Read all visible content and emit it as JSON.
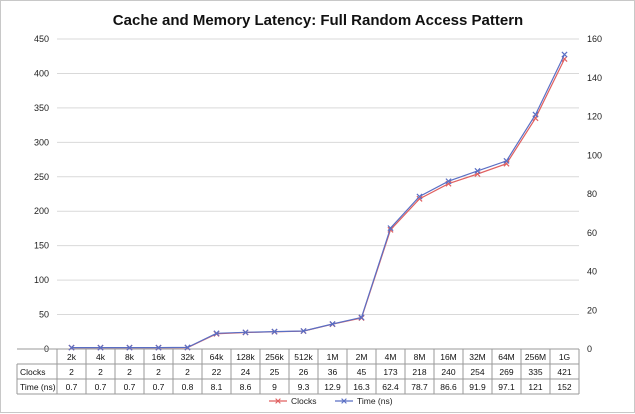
{
  "chart_data": {
    "type": "line",
    "title": "Cache and Memory Latency: Full Random Access Pattern",
    "categories": [
      "2k",
      "4k",
      "8k",
      "16k",
      "32k",
      "64k",
      "128k",
      "256k",
      "512k",
      "1M",
      "2M",
      "4M",
      "8M",
      "16M",
      "32M",
      "64M",
      "256M",
      "1G"
    ],
    "series": [
      {
        "name": "Clocks",
        "axis": "left",
        "color": "#e06060",
        "values": [
          2,
          2,
          2,
          2,
          2,
          22,
          24,
          25,
          26,
          36,
          45,
          173,
          218,
          240,
          254,
          269,
          335,
          421
        ]
      },
      {
        "name": "Time (ns)",
        "axis": "right",
        "color": "#5a6fc4",
        "values": [
          0.7,
          0.7,
          0.7,
          0.7,
          0.8,
          8.1,
          8.6,
          9,
          9.3,
          12.9,
          16.3,
          62.4,
          78.7,
          86.6,
          91.9,
          97.1,
          121,
          152
        ]
      }
    ],
    "y_left": {
      "min": 0,
      "max": 450,
      "ticks": [
        0,
        50,
        100,
        150,
        200,
        250,
        300,
        350,
        400,
        450
      ]
    },
    "y_right": {
      "min": 0,
      "max": 160,
      "ticks": [
        0,
        20,
        40,
        60,
        80,
        100,
        120,
        140,
        160
      ]
    },
    "table_rows": [
      {
        "label": "Clocks",
        "values": [
          "2",
          "2",
          "2",
          "2",
          "2",
          "22",
          "24",
          "25",
          "26",
          "36",
          "45",
          "173",
          "218",
          "240",
          "254",
          "269",
          "335",
          "421"
        ]
      },
      {
        "label": "Time (ns)",
        "values": [
          "0.7",
          "0.7",
          "0.7",
          "0.7",
          "0.8",
          "8.1",
          "8.6",
          "9",
          "9.3",
          "12.9",
          "16.3",
          "62.4",
          "78.7",
          "86.6",
          "91.9",
          "97.1",
          "121",
          "152"
        ]
      }
    ],
    "legend": [
      "Clocks",
      "Time (ns)"
    ],
    "legend_position": "bottom",
    "grid": true
  }
}
